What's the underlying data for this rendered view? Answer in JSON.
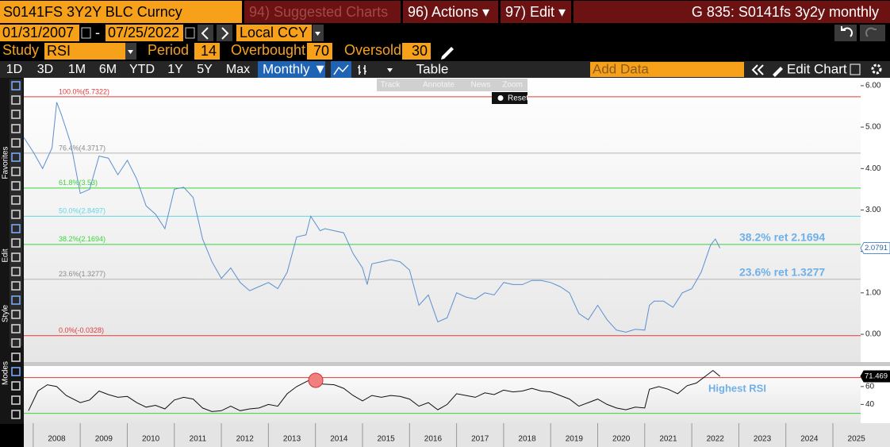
{
  "ui": {
    "security": "S0141FS 3Y2Y BLC Curncy",
    "menu": [
      "94) Suggested Charts",
      "96) Actions ▾",
      "97) Edit ▾"
    ],
    "page_title": "G 835: S0141fs 3y2y monthly",
    "start_date": "01/31/2007",
    "date_sep": "-",
    "end_date": "07/25/2022",
    "currency": "Local CCY",
    "study_label": "Study",
    "study": "RSI",
    "period_label": "Period",
    "period": "14",
    "overbought_label": "Overbought",
    "overbought": "70",
    "oversold_label": "Oversold",
    "oversold": "30",
    "ranges": [
      "1D",
      "3D",
      "1M",
      "6M",
      "YTD",
      "1Y",
      "5Y",
      "Max"
    ],
    "frequency": "Monthly ▼",
    "table": "Table",
    "add_data": "Add Data",
    "edit_chart": "Edit Chart",
    "side_labels": [
      "Favorites",
      "Edit",
      "Style",
      "Modes"
    ],
    "popup": [
      "Track",
      "Annotate",
      "News",
      "Zoom"
    ],
    "reset": "Reset"
  },
  "chart_data": [
    {
      "type": "line",
      "xlim": [
        2007.8,
        2025.59
      ],
      "ylim": [
        -0.67,
        6.19
      ],
      "yticks": [
        {
          "value": 0,
          "label": "0.00"
        },
        {
          "value": 1,
          "label": "1.00"
        },
        {
          "value": 2,
          "label": "2.00"
        },
        {
          "value": 3,
          "label": "3.00"
        },
        {
          "value": 4,
          "label": "4.00"
        },
        {
          "value": 5,
          "label": "5.00"
        },
        {
          "value": 6,
          "label": "6.00"
        }
      ],
      "xticks": [
        2008,
        2009,
        2010,
        2011,
        2012,
        2013,
        2014,
        2015,
        2016,
        2017,
        2018,
        2019,
        2020,
        2021,
        2022,
        2023,
        2024,
        2025
      ],
      "levels": [
        {
          "label": "100.0%(5.7322)",
          "value": 5.7322,
          "color": "#e03a3a"
        },
        {
          "label": "76.4%(4.3717)",
          "value": 4.3717,
          "color": "#b5b5b5"
        },
        {
          "label": "61.8%(3.53)",
          "value": 3.53,
          "color": "#3ad43a"
        },
        {
          "label": "50.0%(2.8497)",
          "value": 2.8497,
          "color": "#5fd6e6"
        },
        {
          "label": "38.2%(2.1694)",
          "value": 2.1694,
          "color": "#3ad43a"
        },
        {
          "label": "23.6%(1.3277)",
          "value": 1.3277,
          "color": "#b5b5b5"
        },
        {
          "label": "0.0%(-0.0328)",
          "value": -0.0328,
          "color": "#e03a3a"
        }
      ],
      "annotations": [
        "38.2% ret 2.1694",
        "23.6% ret 1.3277"
      ],
      "series": [
        {
          "color": "#5b8fd0",
          "x": [
            2007.8,
            2008.0,
            2008.2,
            2008.4,
            2008.5,
            2008.6,
            2008.8,
            2009.0,
            2009.2,
            2009.4,
            2009.6,
            2009.8,
            2010.0,
            2010.2,
            2010.4,
            2010.6,
            2010.8,
            2011.0,
            2011.2,
            2011.4,
            2011.6,
            2011.8,
            2012.0,
            2012.2,
            2012.4,
            2012.6,
            2012.8,
            2013.0,
            2013.2,
            2013.4,
            2013.6,
            2013.8,
            2013.9,
            2014.1,
            2014.2,
            2014.4,
            2014.6,
            2014.8,
            2015.0,
            2015.1,
            2015.2,
            2015.4,
            2015.6,
            2015.8,
            2016.0,
            2016.2,
            2016.4,
            2016.6,
            2016.8,
            2017.0,
            2017.2,
            2017.4,
            2017.6,
            2017.8,
            2018.0,
            2018.2,
            2018.4,
            2018.6,
            2018.8,
            2019.0,
            2019.2,
            2019.4,
            2019.6,
            2019.8,
            2020.0,
            2020.2,
            2020.4,
            2020.6,
            2020.8,
            2021.0,
            2021.1,
            2021.2,
            2021.4,
            2021.6,
            2021.8,
            2022.0,
            2022.2,
            2022.4,
            2022.5,
            2022.6
          ],
          "values": [
            4.75,
            4.4,
            4.0,
            4.5,
            5.6,
            5.3,
            4.6,
            3.4,
            3.5,
            4.3,
            4.25,
            3.85,
            4.2,
            3.75,
            3.1,
            2.9,
            2.55,
            3.5,
            3.55,
            3.3,
            2.3,
            1.75,
            1.35,
            1.6,
            1.25,
            1.05,
            1.15,
            1.25,
            1.1,
            1.5,
            2.35,
            2.4,
            2.85,
            2.5,
            2.55,
            2.5,
            2.45,
            1.95,
            1.6,
            1.2,
            1.7,
            1.75,
            1.8,
            1.75,
            1.55,
            0.7,
            0.95,
            0.3,
            0.4,
            1.0,
            0.9,
            0.85,
            1.0,
            0.95,
            1.25,
            1.2,
            1.2,
            1.3,
            1.3,
            1.25,
            1.15,
            1.0,
            0.5,
            0.35,
            0.7,
            0.35,
            0.1,
            0.05,
            0.12,
            0.1,
            0.7,
            0.8,
            0.8,
            0.65,
            1.0,
            1.1,
            1.5,
            2.15,
            2.3,
            2.0791
          ]
        }
      ]
    },
    {
      "type": "line",
      "xlim": [
        2007.8,
        2025.59
      ],
      "ylim": [
        19,
        83
      ],
      "yticks": [
        40,
        60
      ],
      "overbought": 70,
      "oversold": 30,
      "annotation": "Highest RSI",
      "series": [
        {
          "color": "#111111",
          "x": [
            2007.9,
            2008.1,
            2008.3,
            2008.5,
            2008.7,
            2009.0,
            2009.2,
            2009.4,
            2009.6,
            2009.8,
            2010.0,
            2010.2,
            2010.4,
            2010.6,
            2010.8,
            2011.0,
            2011.2,
            2011.4,
            2011.6,
            2011.8,
            2012.0,
            2012.2,
            2012.4,
            2012.6,
            2012.8,
            2013.0,
            2013.2,
            2013.4,
            2013.6,
            2013.9,
            2014.1,
            2014.4,
            2014.6,
            2014.8,
            2015.0,
            2015.2,
            2015.4,
            2015.6,
            2015.8,
            2016.0,
            2016.2,
            2016.4,
            2016.6,
            2016.8,
            2017.0,
            2017.2,
            2017.4,
            2017.6,
            2017.8,
            2018.0,
            2018.2,
            2018.4,
            2018.6,
            2018.8,
            2019.0,
            2019.2,
            2019.4,
            2019.6,
            2019.8,
            2020.0,
            2020.2,
            2020.4,
            2020.6,
            2020.8,
            2021.0,
            2021.1,
            2021.3,
            2021.5,
            2021.7,
            2021.9,
            2022.1,
            2022.3,
            2022.45,
            2022.6
          ],
          "values": [
            33,
            55,
            62,
            60,
            50,
            42,
            45,
            55,
            51,
            48,
            49,
            42,
            37,
            39,
            35,
            45,
            48,
            46,
            36,
            32,
            33,
            38,
            33,
            35,
            36,
            40,
            38,
            52,
            60,
            68,
            63,
            62,
            58,
            50,
            44,
            50,
            48,
            50,
            49,
            46,
            38,
            42,
            34,
            40,
            52,
            50,
            48,
            53,
            51,
            56,
            54,
            55,
            58,
            55,
            54,
            50,
            46,
            38,
            42,
            46,
            40,
            36,
            34,
            37,
            36,
            57,
            60,
            57,
            52,
            61,
            64,
            72,
            78,
            71.469
          ]
        }
      ]
    }
  ]
}
